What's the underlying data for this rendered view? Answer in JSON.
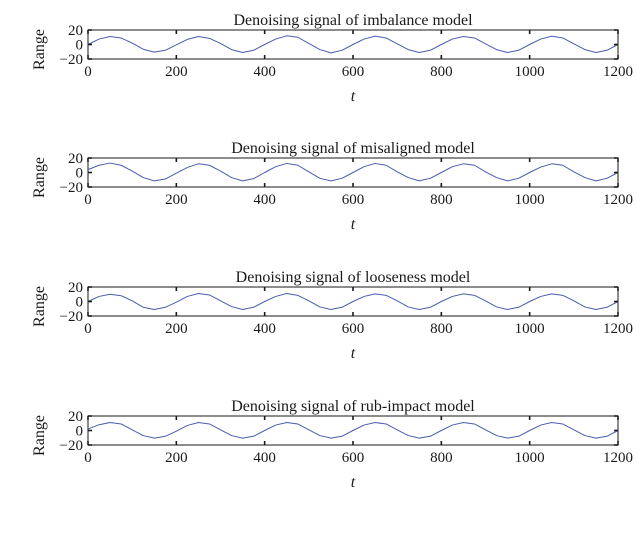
{
  "chart_data": [
    {
      "type": "line",
      "title": "Denoising signal of imbalance model",
      "xlabel": "t",
      "ylabel": "Range",
      "xlim": [
        0,
        1200
      ],
      "ylim": [
        -20,
        20
      ],
      "xticks": [
        "0",
        "200",
        "400",
        "600",
        "800",
        "1000",
        "1200"
      ],
      "yticks": [
        "20",
        "0",
        "−20"
      ],
      "series": [
        {
          "x": [
            0,
            25,
            50,
            75,
            100,
            125,
            150,
            175,
            200,
            225,
            250,
            275,
            300,
            325,
            350,
            375,
            400,
            425,
            450,
            475,
            500,
            525,
            550,
            575,
            600,
            625,
            650,
            675,
            700,
            725,
            750,
            775,
            800,
            825,
            850,
            875,
            900,
            925,
            950,
            975,
            1000,
            1025,
            1050,
            1075,
            1100,
            1125,
            1150,
            1175,
            1200
          ],
          "values": [
            0,
            7.5,
            11,
            9,
            2,
            -6.5,
            -10.5,
            -8,
            -0.5,
            7,
            11,
            8.5,
            1.5,
            -7,
            -11,
            -8,
            0,
            7.5,
            12,
            10,
            1.5,
            -7,
            -11.5,
            -8,
            0,
            7.5,
            11.5,
            9,
            1,
            -7,
            -11,
            -8,
            0,
            7.5,
            11,
            9,
            1,
            -7,
            -11,
            -8,
            0,
            7.5,
            11.5,
            9,
            1,
            -7,
            -11,
            -8,
            0
          ]
        }
      ],
      "color": "#4a5cae"
    },
    {
      "type": "line",
      "title": "Denoising signal of misaligned model",
      "xlabel": "t",
      "ylabel": "Range",
      "xlim": [
        0,
        1200
      ],
      "ylim": [
        -20,
        20
      ],
      "xticks": [
        "0",
        "200",
        "400",
        "600",
        "800",
        "1000",
        "1200"
      ],
      "yticks": [
        "20",
        "0",
        "−20"
      ],
      "series": [
        {
          "x": [
            0,
            25,
            50,
            75,
            100,
            125,
            150,
            175,
            200,
            225,
            250,
            275,
            300,
            325,
            350,
            375,
            400,
            425,
            450,
            475,
            500,
            525,
            550,
            575,
            600,
            625,
            650,
            675,
            700,
            725,
            750,
            775,
            800,
            825,
            850,
            875,
            900,
            925,
            950,
            975,
            1000,
            1025,
            1050,
            1075,
            1100,
            1125,
            1150,
            1175,
            1200
          ],
          "values": [
            4,
            10,
            13,
            10,
            2,
            -7,
            -11.5,
            -9,
            -1,
            7,
            12,
            10,
            2,
            -7,
            -11.5,
            -8.5,
            0,
            8,
            12.5,
            10,
            1,
            -8,
            -11.5,
            -8,
            0,
            8,
            12.5,
            10,
            1,
            -7,
            -11.5,
            -8,
            0,
            8,
            12,
            10,
            1,
            -7,
            -11.5,
            -8,
            0,
            7.5,
            12,
            10,
            1,
            -7,
            -11.5,
            -8,
            0
          ]
        }
      ],
      "color": "#4a5cae"
    },
    {
      "type": "line",
      "title": "Denoising signal of looseness model",
      "xlabel": "t",
      "ylabel": "Range",
      "xlim": [
        0,
        1200
      ],
      "ylim": [
        -20,
        20
      ],
      "xticks": [
        "0",
        "200",
        "400",
        "600",
        "800",
        "1000",
        "1200"
      ],
      "yticks": [
        "20",
        "0",
        "−20"
      ],
      "series": [
        {
          "x": [
            0,
            25,
            50,
            75,
            100,
            125,
            150,
            175,
            200,
            225,
            250,
            275,
            300,
            325,
            350,
            375,
            400,
            425,
            450,
            475,
            500,
            525,
            550,
            575,
            600,
            625,
            650,
            675,
            700,
            725,
            750,
            775,
            800,
            825,
            850,
            875,
            900,
            925,
            950,
            975,
            1000,
            1025,
            1050,
            1075,
            1100,
            1125,
            1150,
            1175,
            1200
          ],
          "values": [
            0,
            7,
            10,
            8,
            1,
            -8,
            -11,
            -8,
            -1,
            7,
            11,
            9,
            1,
            -7,
            -11,
            -8,
            0,
            7,
            11,
            8.5,
            1,
            -7.5,
            -11,
            -8,
            0,
            7,
            10.5,
            8.5,
            1,
            -7.5,
            -11,
            -8,
            0,
            7,
            10.5,
            8.5,
            1,
            -7.5,
            -11,
            -8,
            0,
            7,
            10.5,
            8.5,
            1,
            -7.5,
            -11,
            -8,
            0
          ]
        }
      ],
      "color": "#4a5cae"
    },
    {
      "type": "line",
      "title": "Denoising signal of rub-impact model",
      "xlabel": "t",
      "ylabel": "Range",
      "xlim": [
        0,
        1200
      ],
      "ylim": [
        -20,
        20
      ],
      "xticks": [
        "0",
        "200",
        "400",
        "600",
        "800",
        "1000",
        "1200"
      ],
      "yticks": [
        "20",
        "0",
        "−20"
      ],
      "series": [
        {
          "x": [
            0,
            25,
            50,
            75,
            100,
            125,
            150,
            175,
            200,
            225,
            250,
            275,
            300,
            325,
            350,
            375,
            400,
            425,
            450,
            475,
            500,
            525,
            550,
            575,
            600,
            625,
            650,
            675,
            700,
            725,
            750,
            775,
            800,
            825,
            850,
            875,
            900,
            925,
            950,
            975,
            1000,
            1025,
            1050,
            1075,
            1100,
            1125,
            1150,
            1175,
            1200
          ],
          "values": [
            2,
            8,
            11,
            9,
            1,
            -7,
            -10.5,
            -8,
            -1,
            7,
            11,
            9,
            1,
            -7,
            -10.5,
            -8,
            0,
            7.5,
            11,
            9,
            1,
            -7,
            -10.5,
            -8,
            0,
            7.5,
            11,
            9,
            1,
            -7,
            -10.5,
            -8,
            0,
            7.5,
            11,
            9,
            1,
            -7,
            -10.5,
            -8,
            0,
            7.5,
            11,
            9,
            1,
            -7,
            -10.5,
            -8,
            0
          ]
        }
      ],
      "color": "#4a5cae"
    }
  ]
}
